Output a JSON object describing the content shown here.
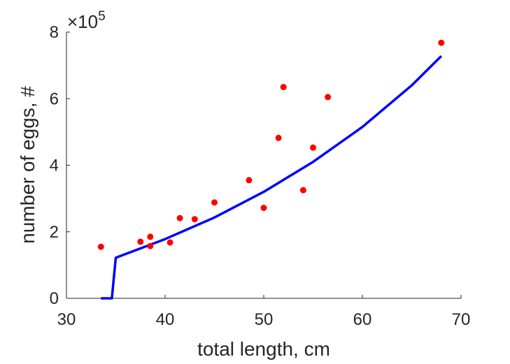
{
  "chart_data": {
    "type": "scatter",
    "xlabel": "total length, cm",
    "ylabel": "number of eggs, #",
    "xlim": [
      30,
      70
    ],
    "ylim": [
      0,
      800000
    ],
    "xticks": [
      "30",
      "40",
      "50",
      "60",
      "70"
    ],
    "yticks": [
      "0",
      "2",
      "4",
      "6",
      "8"
    ],
    "y_exponent_base": "×10",
    "y_exponent_power": "5",
    "grid": false,
    "legend": "none",
    "colors": {
      "points": "#ff0000",
      "fit": "#0000ff",
      "axis": "#262626"
    },
    "series": [
      {
        "type": "scatter",
        "points": [
          {
            "x": 33.5,
            "y": 155000
          },
          {
            "x": 37.5,
            "y": 170000
          },
          {
            "x": 38.5,
            "y": 185000
          },
          {
            "x": 38.5,
            "y": 157000
          },
          {
            "x": 40.5,
            "y": 168000
          },
          {
            "x": 41.5,
            "y": 241000
          },
          {
            "x": 43.0,
            "y": 238000
          },
          {
            "x": 45.0,
            "y": 288000
          },
          {
            "x": 48.5,
            "y": 355000
          },
          {
            "x": 50.0,
            "y": 272000
          },
          {
            "x": 51.5,
            "y": 482000
          },
          {
            "x": 52.0,
            "y": 635000
          },
          {
            "x": 54.0,
            "y": 325000
          },
          {
            "x": 55.0,
            "y": 453000
          },
          {
            "x": 56.5,
            "y": 605000
          },
          {
            "x": 68.0,
            "y": 768000
          }
        ]
      },
      {
        "type": "line",
        "points": [
          {
            "x": 33.5,
            "y": 0
          },
          {
            "x": 34.6,
            "y": 0
          },
          {
            "x": 35.0,
            "y": 122000
          },
          {
            "x": 40,
            "y": 178000
          },
          {
            "x": 45,
            "y": 243000
          },
          {
            "x": 50,
            "y": 320000
          },
          {
            "x": 55,
            "y": 410000
          },
          {
            "x": 60,
            "y": 515000
          },
          {
            "x": 65,
            "y": 640000
          },
          {
            "x": 68,
            "y": 728000
          }
        ]
      }
    ]
  }
}
